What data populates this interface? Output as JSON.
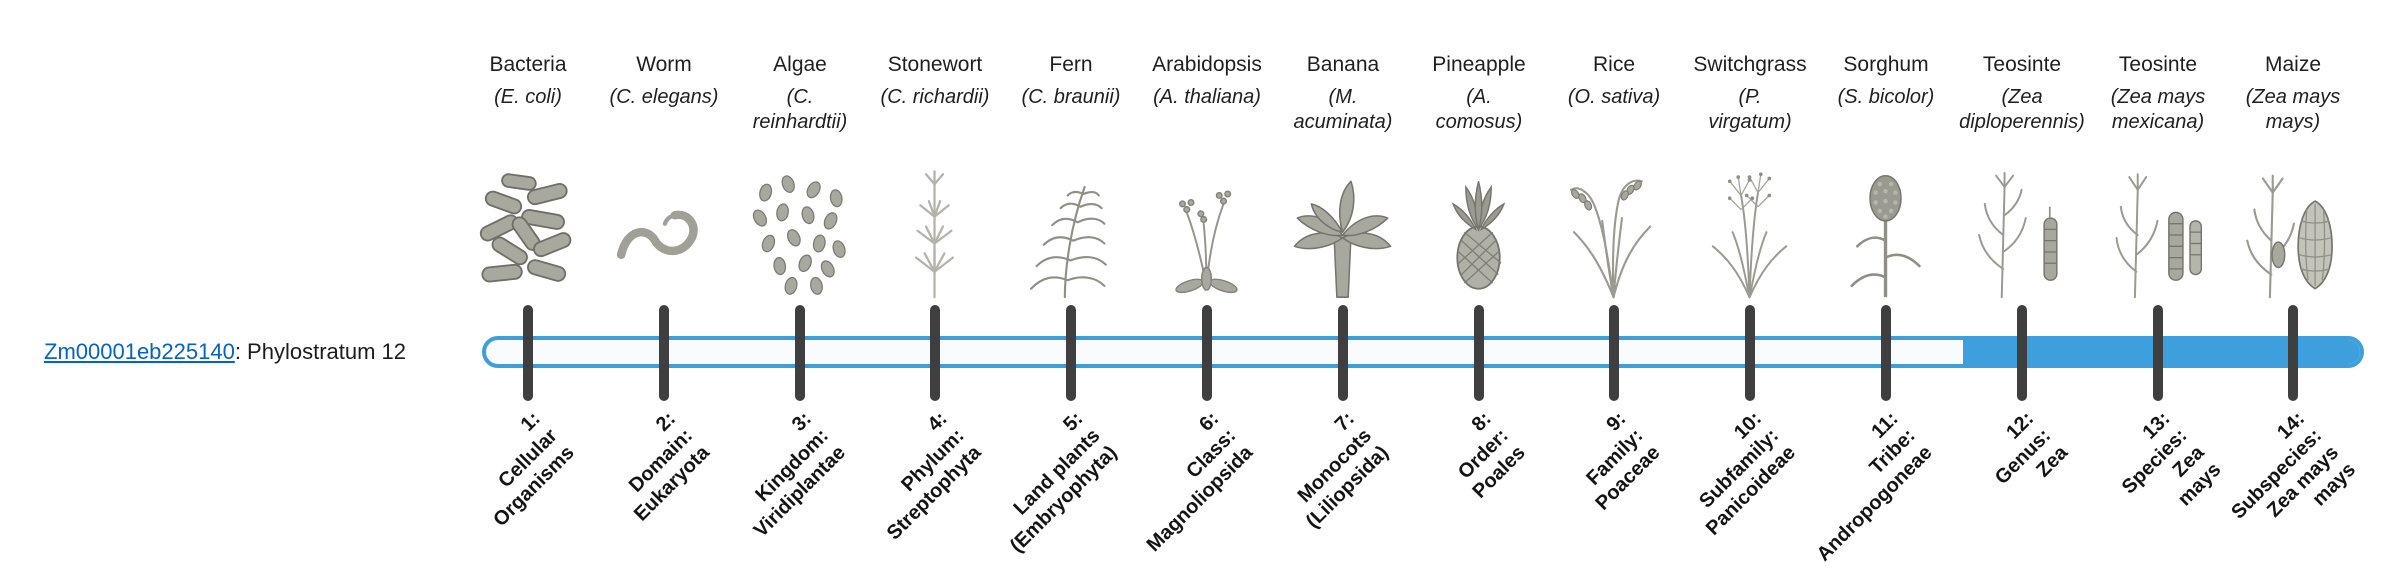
{
  "gene": {
    "id": "Zm00001eb225140",
    "suffix": ": Phylostratum 12",
    "phylostratum": 12
  },
  "colors": {
    "bar_blue": "#3D9FDC",
    "tick_dark": "#3F3F3F",
    "link_blue": "#0563C1"
  },
  "bar": {
    "total_strata": 14,
    "highlighted_strata": [
      12,
      13,
      14
    ],
    "filled_from_stratum": 12
  },
  "strata": [
    {
      "number": 1,
      "organism": "Bacteria",
      "sci_lines": [
        "(E. coli)"
      ],
      "icon": "bacteria-illustration",
      "label_lines": [
        "1:",
        "Cellular",
        "Organisms"
      ]
    },
    {
      "number": 2,
      "organism": "Worm",
      "sci_lines": [
        "(C. elegans)"
      ],
      "icon": "worm-illustration",
      "label_lines": [
        "2:",
        "Domain:",
        "Eukaryota"
      ]
    },
    {
      "number": 3,
      "organism": "Algae",
      "sci_lines": [
        "(C.",
        "reinhardtii)"
      ],
      "icon": "algae-illustration",
      "label_lines": [
        "3:",
        "Kingdom:",
        "Viridiplantae"
      ]
    },
    {
      "number": 4,
      "organism": "Stonewort",
      "sci_lines": [
        "(C. richardii)"
      ],
      "icon": "stonewort-illustration",
      "label_lines": [
        "4:",
        "Phylum:",
        "Streptophyta"
      ]
    },
    {
      "number": 5,
      "organism": "Fern",
      "sci_lines": [
        "(C. braunii)"
      ],
      "icon": "fern-illustration",
      "label_lines": [
        "5:",
        "Land plants",
        "(Embryophyta)"
      ]
    },
    {
      "number": 6,
      "organism": "Arabidopsis",
      "sci_lines": [
        "(A. thaliana)"
      ],
      "icon": "arabidopsis-illustration",
      "label_lines": [
        "6:",
        "Class:",
        "Magnoliopsida"
      ]
    },
    {
      "number": 7,
      "organism": "Banana",
      "sci_lines": [
        "(M.",
        "acuminata)"
      ],
      "icon": "banana-illustration",
      "label_lines": [
        "7:",
        "Monocots",
        "(Liliopsida)"
      ]
    },
    {
      "number": 8,
      "organism": "Pineapple",
      "sci_lines": [
        "(A.",
        "comosus)"
      ],
      "icon": "pineapple-illustration",
      "label_lines": [
        "8:",
        "Order:",
        "Poales"
      ]
    },
    {
      "number": 9,
      "organism": "Rice",
      "sci_lines": [
        "(O. sativa)"
      ],
      "icon": "rice-illustration",
      "label_lines": [
        "9:",
        "Family:",
        "Poaceae"
      ]
    },
    {
      "number": 10,
      "organism": "Switchgrass",
      "sci_lines": [
        "(P.",
        "virgatum)"
      ],
      "icon": "switchgrass-illustration",
      "label_lines": [
        "10:",
        "Subfamily:",
        "Panicoideae"
      ]
    },
    {
      "number": 11,
      "organism": "Sorghum",
      "sci_lines": [
        "(S. bicolor)"
      ],
      "icon": "sorghum-illustration",
      "label_lines": [
        "11:",
        "Tribe:",
        "Andropogoneae"
      ]
    },
    {
      "number": 12,
      "organism": "Teosinte",
      "sci_lines": [
        "(Zea",
        "diploperennis)"
      ],
      "icon": "teosinte-diploperennis-illustration",
      "label_lines": [
        "12:",
        "Genus:",
        "Zea"
      ]
    },
    {
      "number": 13,
      "organism": "Teosinte",
      "sci_lines": [
        "(Zea mays",
        "mexicana)"
      ],
      "icon": "teosinte-mexicana-illustration",
      "label_lines": [
        "13:",
        "Species:",
        "Zea",
        "mays"
      ]
    },
    {
      "number": 14,
      "organism": "Maize",
      "sci_lines": [
        "(Zea mays",
        "mays)"
      ],
      "icon": "maize-illustration",
      "label_lines": [
        "14:",
        "Subspecies:",
        "Zea mays",
        "mays"
      ]
    }
  ],
  "chart_data": {
    "type": "bar",
    "title": "Zm00001eb225140: Phylostratum 12",
    "x": [
      1,
      2,
      3,
      4,
      5,
      6,
      7,
      8,
      9,
      10,
      11,
      12,
      13,
      14
    ],
    "categories": [
      "1: Cellular Organisms",
      "2: Domain: Eukaryota",
      "3: Kingdom: Viridiplantae",
      "4: Phylum: Streptophyta",
      "5: Land plants (Embryophyta)",
      "6: Class: Magnoliopsida",
      "7: Monocots (Liliopsida)",
      "8: Order: Poales",
      "9: Family: Poaceae",
      "10: Subfamily: Panicoideae",
      "11: Tribe: Andropogoneae",
      "12: Genus: Zea",
      "13: Species: Zea mays",
      "14: Subspecies: Zea mays mays"
    ],
    "tick_organisms": [
      "Bacteria (E. coli)",
      "Worm (C. elegans)",
      "Algae (C. reinhardtii)",
      "Stonewort (C. richardii)",
      "Fern (C. braunii)",
      "Arabidopsis (A. thaliana)",
      "Banana (M. acuminata)",
      "Pineapple (A. comosus)",
      "Rice (O. sativa)",
      "Switchgrass (P. virgatum)",
      "Sorghum (S. bicolor)",
      "Teosinte (Zea diploperennis)",
      "Teosinte (Zea mays mexicana)",
      "Maize (Zea mays mays)"
    ],
    "series": [
      {
        "name": "highlighted-phylostrata",
        "values": [
          0,
          0,
          0,
          0,
          0,
          0,
          0,
          0,
          0,
          0,
          0,
          1,
          1,
          1
        ]
      }
    ],
    "legend": "none",
    "grid": false
  }
}
